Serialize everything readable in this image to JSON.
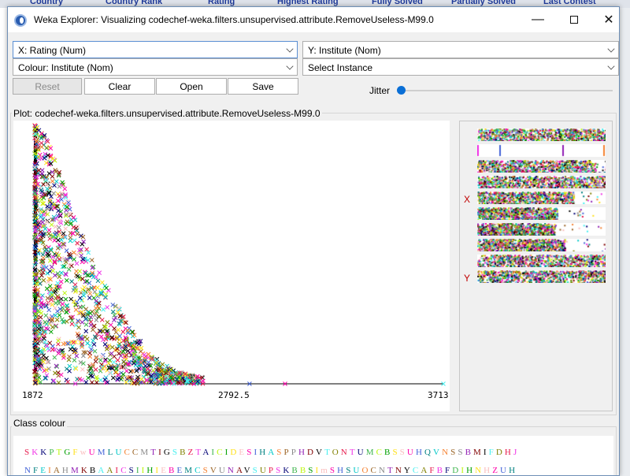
{
  "background_table": {
    "headers": [
      "Country",
      "Country Rank",
      "Rating",
      "Highest Rating",
      "Fully Solved",
      "Partially Solved",
      "Last Contest"
    ]
  },
  "window": {
    "title": "Weka Explorer: Visualizing codechef-weka.filters.unsupervised.attribute.RemoveUseless-M99.0",
    "minimize_glyph": "—",
    "close_glyph": "✕"
  },
  "controls": {
    "x_axis": "X: Rating (Num)",
    "y_axis": "Y: Institute (Nom)",
    "colour": "Colour: Institute (Nom)",
    "instance": "Select Instance",
    "reset_label": "Reset",
    "clear_label": "Clear",
    "open_label": "Open",
    "save_label": "Save",
    "jitter_label": "Jitter",
    "jitter_value": 0
  },
  "plot": {
    "title": "Plot: codechef-weka.filters.unsupervised.attribute.RemoveUseless-M99.0",
    "x_min_label": "1872",
    "x_mid_label": "2792.5",
    "x_max_label": "3713"
  },
  "matrix": {
    "x_marker": "X",
    "y_marker": "Y"
  },
  "class_colour": {
    "title": "Class colour",
    "row1": "SKKPTGFwUMLUCCMTIGSBZTAICIDESIHASPPHDVTONTUMCBSSUHQVNSSBMIFDHJ",
    "row2": "NFEIAHMKBAAICSIIHIEBEMCSVUNAVSUPSKBBSImSHSUOCNTNYCAFBFDIHNHZUH"
  },
  "chart_data": {
    "type": "scatter",
    "title": "",
    "xlabel": "Rating (Num)",
    "ylabel": "Institute (Nom)",
    "xlim": [
      1872,
      3713
    ],
    "x_ticks": [
      "1872",
      "2792.5",
      "3713"
    ],
    "marker": "x",
    "colour_by": "Institute (Nom)",
    "palette": [
      "#e6194b",
      "#3cb44b",
      "#ffe119",
      "#4363d8",
      "#f58231",
      "#911eb4",
      "#46f0f0",
      "#f032e6",
      "#bcf60c",
      "#fabebe",
      "#008080",
      "#9a6324",
      "#800000",
      "#808000",
      "#000075",
      "#00a000",
      "#ff00aa",
      "#00c8c8",
      "#8a8a8a",
      "#000000"
    ],
    "envelope": [
      {
        "rating": 1872,
        "institute_fraction": 1.0
      },
      {
        "rating": 1920,
        "institute_fraction": 0.97
      },
      {
        "rating": 2000,
        "institute_fraction": 0.78
      },
      {
        "rating": 2100,
        "institute_fraction": 0.56
      },
      {
        "rating": 2200,
        "institute_fraction": 0.37
      },
      {
        "rating": 2300,
        "institute_fraction": 0.22
      },
      {
        "rating": 2400,
        "institute_fraction": 0.11
      },
      {
        "rating": 2500,
        "institute_fraction": 0.05
      },
      {
        "rating": 2600,
        "institute_fraction": 0.03
      },
      {
        "rating": 2800,
        "institute_fraction": 0.008
      },
      {
        "rating": 3000,
        "institute_fraction": 0.004
      },
      {
        "rating": 3713,
        "institute_fraction": 0.0
      }
    ],
    "outliers": [
      {
        "rating": 2500,
        "institute_fraction": 0.0
      },
      {
        "rating": 2590,
        "institute_fraction": 0.0
      },
      {
        "rating": 2840,
        "institute_fraction": 0.0
      },
      {
        "rating": 3000,
        "institute_fraction": 0.0
      },
      {
        "rating": 3713,
        "institute_fraction": 0.0
      }
    ]
  }
}
